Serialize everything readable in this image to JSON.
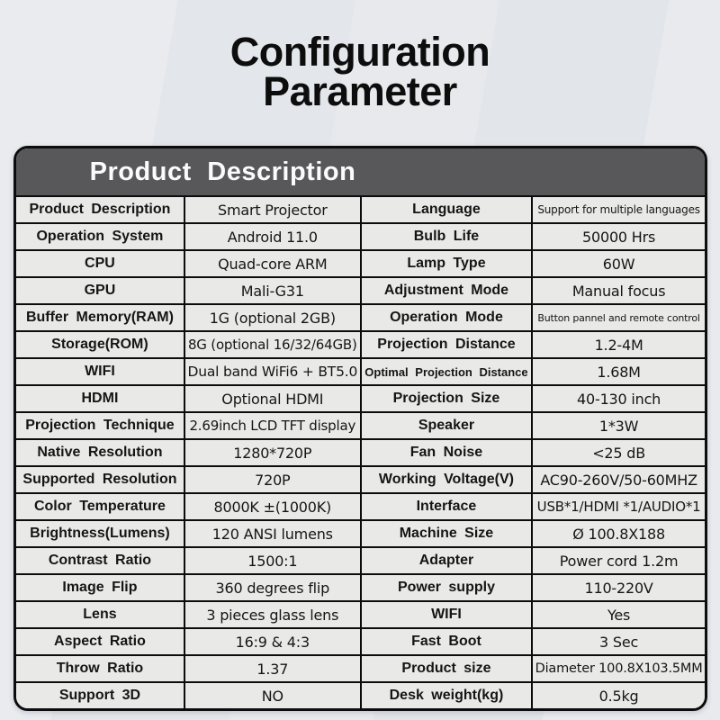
{
  "page": {
    "title_line1": "Configuration",
    "title_line2": "Parameter"
  },
  "table": {
    "header": "Product Description",
    "rows": [
      {
        "l1": "Product Description",
        "v1": "Smart Projector",
        "l2": "Language",
        "v2": "Support for multiple languages"
      },
      {
        "l1": "Operation System",
        "v1": "Android 11.0",
        "l2": "Bulb Life",
        "v2": "50000 Hrs"
      },
      {
        "l1": "CPU",
        "v1": "Quad-core ARM",
        "l2": "Lamp Type",
        "v2": "60W"
      },
      {
        "l1": "GPU",
        "v1": "Mali-G31",
        "l2": "Adjustment Mode",
        "v2": "Manual focus"
      },
      {
        "l1": "Buffer Memory(RAM)",
        "v1": "1G (optional 2GB)",
        "l2": "Operation Mode",
        "v2": "Button pannel and remote control"
      },
      {
        "l1": "Storage(ROM)",
        "v1": "8G (optional 16/32/64GB)",
        "l2": "Projection Distance",
        "v2": "1.2-4M"
      },
      {
        "l1": "WIFI",
        "v1": "Dual band WiFi6 + BT5.0",
        "l2": "Optimal Projection Distance",
        "v2": "1.68M"
      },
      {
        "l1": "HDMI",
        "v1": "Optional HDMI",
        "l2": "Projection Size",
        "v2": "40-130 inch"
      },
      {
        "l1": "Projection Technique",
        "v1": "2.69inch LCD TFT display",
        "l2": "Speaker",
        "v2": "1*3W"
      },
      {
        "l1": "Native Resolution",
        "v1": "1280*720P",
        "l2": "Fan Noise",
        "v2": "<25 dB"
      },
      {
        "l1": "Supported Resolution",
        "v1": "720P",
        "l2": "Working Voltage(V)",
        "v2": "AC90-260V/50-60MHZ"
      },
      {
        "l1": "Color Temperature",
        "v1": "8000K ±(1000K)",
        "l2": "Interface",
        "v2": "USB*1/HDMI *1/AUDIO*1"
      },
      {
        "l1": "Brightness(Lumens)",
        "v1": "120 ANSI lumens",
        "l2": "Machine Size",
        "v2": "Ø 100.8X188"
      },
      {
        "l1": "Contrast Ratio",
        "v1": "1500:1",
        "l2": "Adapter",
        "v2": "Power cord 1.2m"
      },
      {
        "l1": "Image Flip",
        "v1": "360 degrees flip",
        "l2": "Power supply",
        "v2": "110-220V"
      },
      {
        "l1": "Lens",
        "v1": "3 pieces glass lens",
        "l2": "WIFI",
        "v2": "Yes"
      },
      {
        "l1": "Aspect Ratio",
        "v1": "16:9 & 4:3",
        "l2": "Fast Boot",
        "v2": "3 Sec"
      },
      {
        "l1": "Throw Ratio",
        "v1": "1.37",
        "l2": "Product size",
        "v2": "Diameter 100.8X103.5MM"
      },
      {
        "l1": "Support 3D",
        "v1": "NO",
        "l2": "Desk weight(kg)",
        "v2": "0.5kg"
      }
    ]
  },
  "colors": {
    "header_bg": "#58585a",
    "header_text": "#fbfbfb",
    "table_border": "#0c0c0c",
    "cell_bg": "#e9eae8",
    "text": "#151515",
    "page_bg": "#e5e8ec"
  }
}
